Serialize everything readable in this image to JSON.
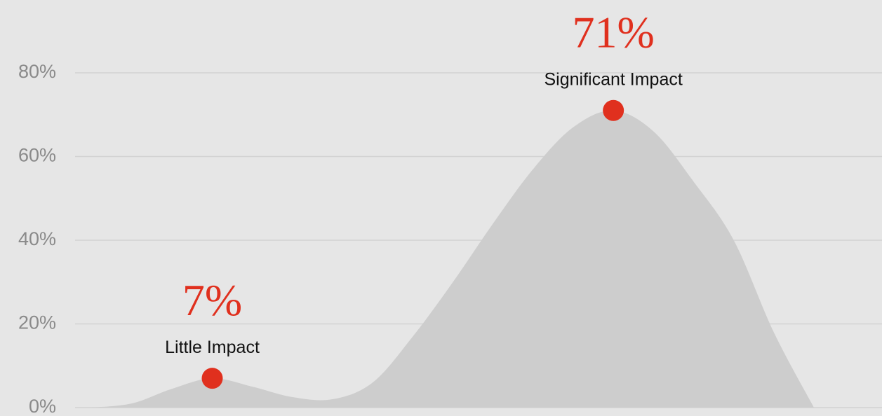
{
  "chart_data": {
    "type": "area",
    "categories": [
      null,
      null,
      null,
      null,
      null,
      null,
      null,
      null,
      null,
      null,
      null,
      null,
      null,
      null,
      null,
      null,
      null,
      null,
      null
    ],
    "series": [
      {
        "color": "#cdcdcd",
        "values": [
          0,
          1,
          4.5,
          7,
          5,
          2.5,
          2,
          6,
          17,
          30,
          44,
          57,
          67,
          71,
          66,
          54,
          40,
          18,
          0
        ],
        "value_labels": [
          null,
          null,
          null,
          "7%",
          null,
          null,
          null,
          null,
          null,
          null,
          null,
          null,
          null,
          "71%",
          null,
          null,
          null,
          null,
          null
        ],
        "point_labels": [
          null,
          null,
          null,
          "Little Impact",
          null,
          null,
          null,
          null,
          null,
          null,
          null,
          null,
          null,
          "Significant Impact",
          null,
          null,
          null,
          null,
          null
        ]
      }
    ],
    "marker_color": "#e0301e",
    "ylim": [
      0,
      97
    ],
    "yticks": [
      {
        "value": 0,
        "label": "0%"
      },
      {
        "value": 20,
        "label": "20%"
      },
      {
        "value": 40,
        "label": "40%"
      },
      {
        "value": 60,
        "label": "60%"
      },
      {
        "value": 80,
        "label": "80%"
      }
    ],
    "grid": true
  }
}
